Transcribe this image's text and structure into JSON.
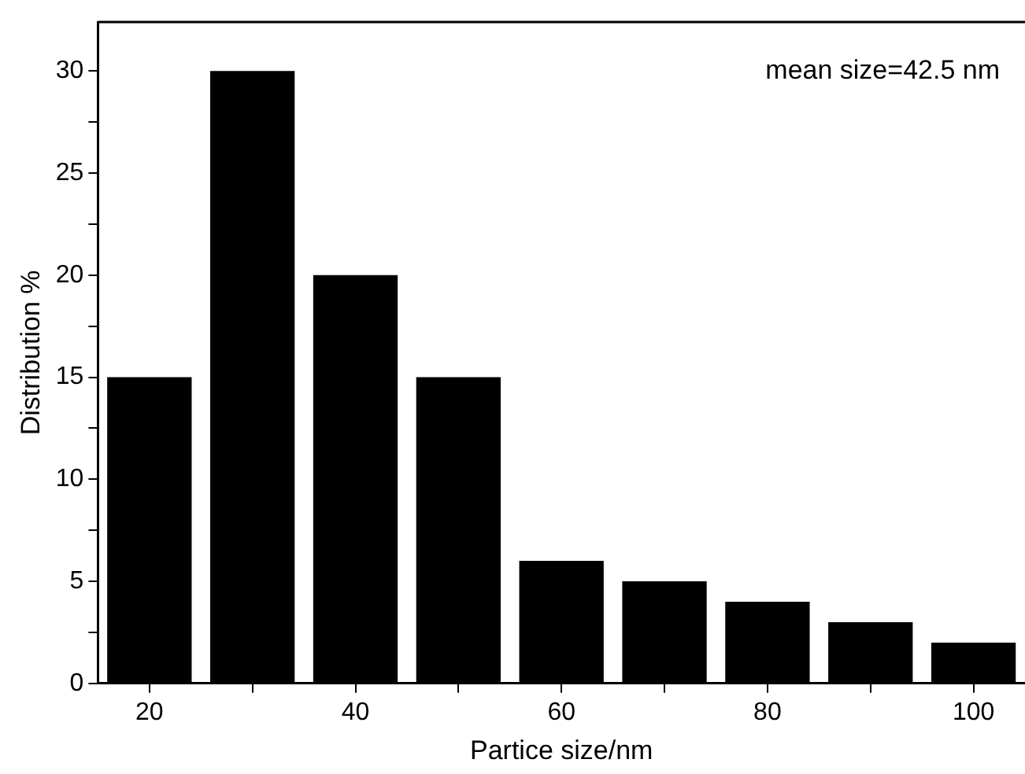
{
  "chart_data": {
    "type": "bar",
    "xlabel": "Partice size/nm",
    "ylabel": "Distribution %",
    "x": [
      20,
      30,
      40,
      50,
      60,
      70,
      80,
      90,
      100
    ],
    "values": [
      15,
      30,
      20,
      15,
      6,
      5,
      4,
      3,
      2
    ],
    "color": "#000000",
    "xlim": [
      15,
      105
    ],
    "xticks": [
      20,
      {
        "value": 30,
        "label": null
      },
      40,
      {
        "value": 50,
        "label": null
      },
      60,
      {
        "value": 70,
        "label": null
      },
      80,
      {
        "value": 90,
        "label": null
      },
      100
    ],
    "ylim": [
      0,
      32.4
    ],
    "yticks": [
      0,
      {
        "value": 2.5,
        "label": null
      },
      5,
      {
        "value": 7.5,
        "label": null
      },
      10,
      {
        "value": 12.5,
        "label": null
      },
      15,
      {
        "value": 17.5,
        "label": null
      },
      20,
      {
        "value": 22.5,
        "label": null
      },
      25,
      {
        "value": 27.5,
        "label": null
      },
      30
    ],
    "annotations": [
      "mean size=42.5 nm"
    ],
    "grid": false,
    "legend": false
  }
}
